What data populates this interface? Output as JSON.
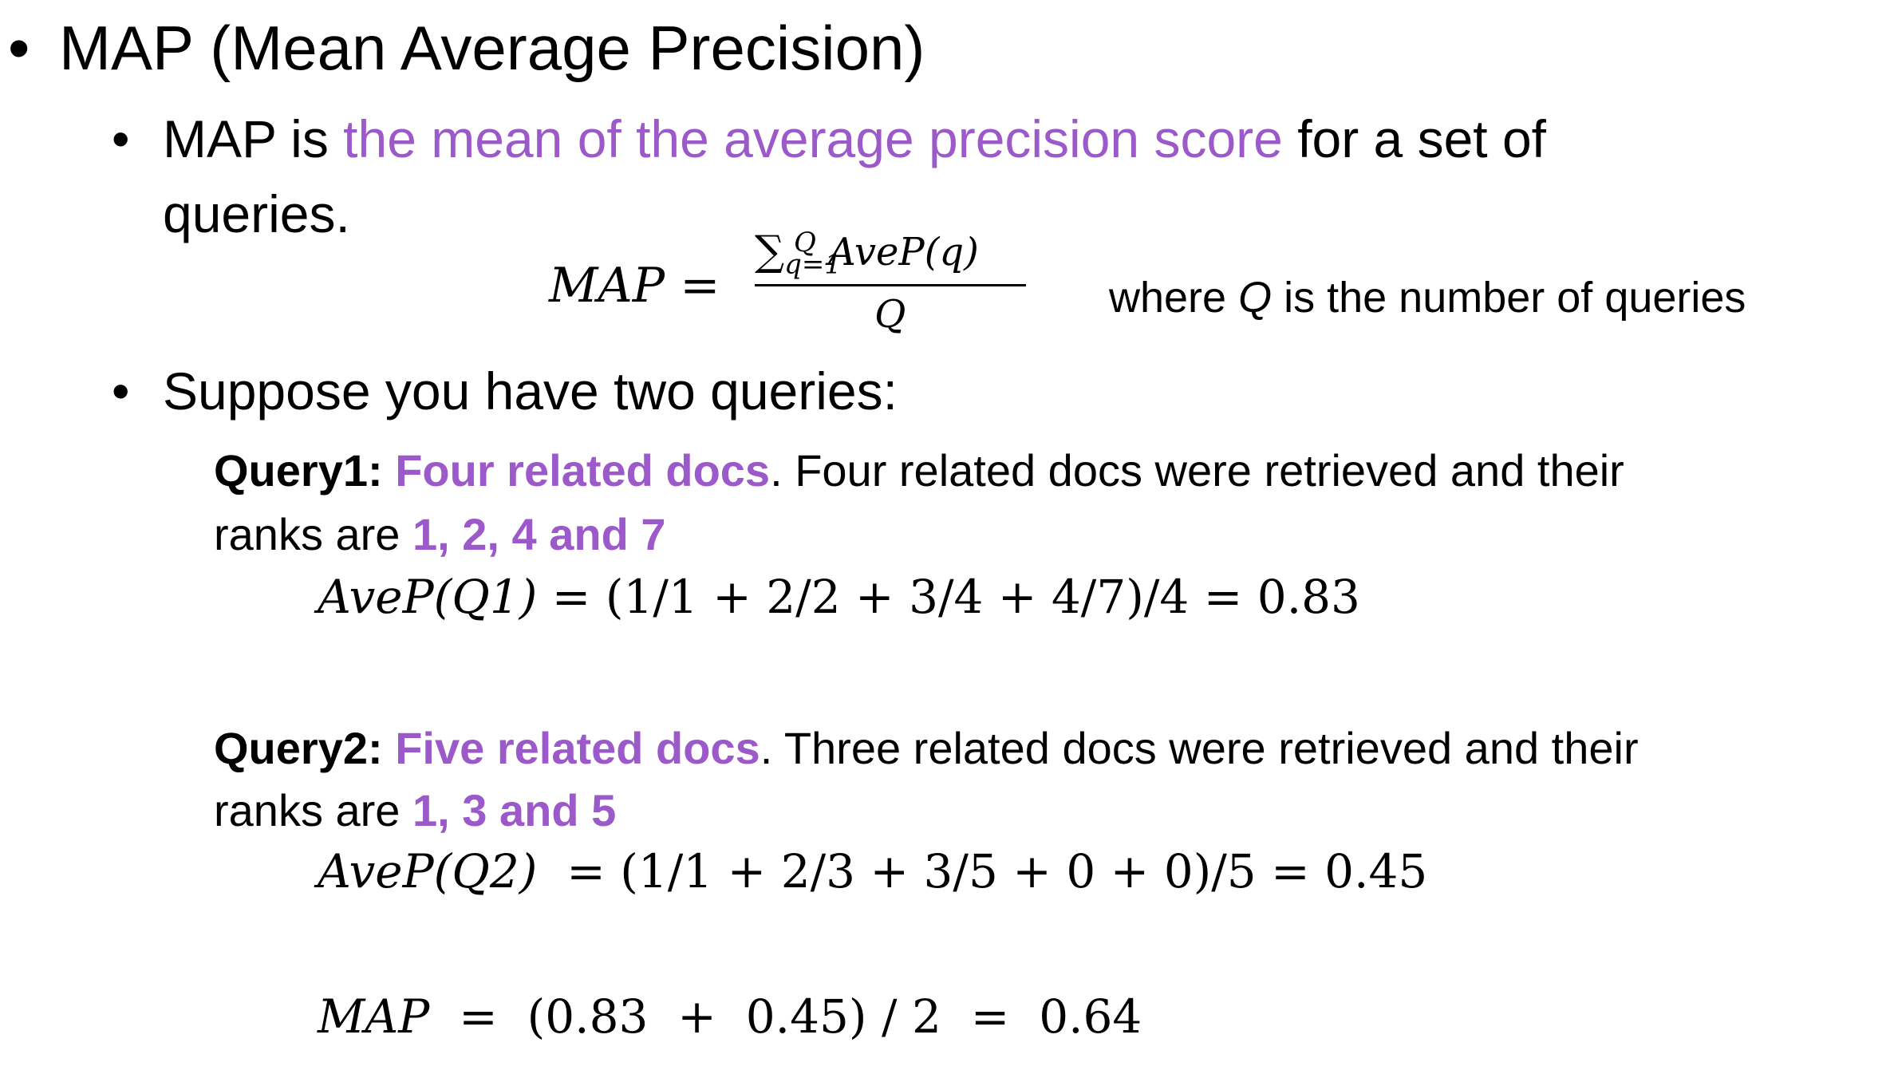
{
  "title": "MAP (Mean Average Precision)",
  "bullet_char": "•",
  "definition": {
    "prefix": "MAP is ",
    "highlight": "the mean of the average precision score",
    "suffix": " for a set of",
    "line2": "queries."
  },
  "formula": {
    "lhs": "MAP",
    "equals": "=",
    "sum": "∑",
    "sum_sub": "q=1",
    "sum_sup": "Q",
    "numerator_term": "AveP(q)",
    "denominator": "Q",
    "where_prefix": "where ",
    "where_var": "Q",
    "where_suffix": " is the number of queries"
  },
  "suppose": "Suppose you have two queries:",
  "query1": {
    "label": "Query1:",
    "highlight": "Four related docs",
    "rest": ". Four related docs were retrieved and their",
    "ranks_prefix": "ranks are ",
    "ranks": "1, 2, 4 and 7",
    "equation_lhs": "AveP(Q1)",
    "equation_rhs": "= (1/1 + 2/2 + 3/4 + 4/7)/4 = 0.83"
  },
  "query2": {
    "label": "Query2:",
    "highlight": "Five related docs",
    "rest": ". Three related docs were retrieved and their",
    "ranks_prefix": "ranks are ",
    "ranks": "1, 3 and 5",
    "equation_lhs": "AveP(Q2)",
    "equation_rhs": "  = (1/1 + 2/3 + 3/5 + 0 + 0)/5 = 0.45"
  },
  "result": {
    "lhs": "MAP",
    "rhs": "  =  (0.83  +  0.45) / 2  =  0.64"
  },
  "colors": {
    "accent": "#9b59c9",
    "text": "#000000",
    "background": "#ffffff"
  }
}
